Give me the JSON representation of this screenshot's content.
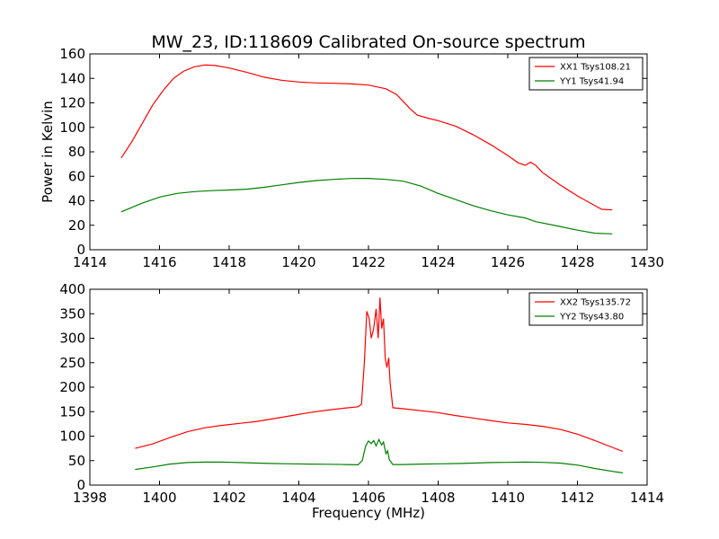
{
  "figure": {
    "title": "MW_23, ID:118609 Calibrated On-source spectrum"
  },
  "chart_data": [
    {
      "type": "line",
      "title": "MW_23, ID:118609 Calibrated On-source spectrum",
      "xlabel": "",
      "ylabel": "Power in Kelvin",
      "xlim": [
        1414,
        1430
      ],
      "ylim": [
        0,
        160
      ],
      "xticks": [
        1414,
        1416,
        1418,
        1420,
        1422,
        1424,
        1426,
        1428,
        1430
      ],
      "yticks": [
        0,
        20,
        40,
        60,
        80,
        100,
        120,
        140,
        160
      ],
      "grid": false,
      "legend_position": "top-right",
      "series": [
        {
          "name": "XX1 Tsys108.21",
          "color": "#ff0000",
          "points": [
            [
              1414.9,
              75
            ],
            [
              1415.2,
              88
            ],
            [
              1415.5,
              103
            ],
            [
              1415.8,
              118
            ],
            [
              1416.1,
              130
            ],
            [
              1416.4,
              140
            ],
            [
              1416.7,
              146
            ],
            [
              1417.0,
              149.5
            ],
            [
              1417.3,
              151
            ],
            [
              1417.6,
              150.5
            ],
            [
              1418.0,
              148.5
            ],
            [
              1418.5,
              145
            ],
            [
              1419.0,
              141
            ],
            [
              1419.5,
              138.5
            ],
            [
              1420.0,
              137
            ],
            [
              1420.5,
              136.3
            ],
            [
              1421.0,
              136
            ],
            [
              1421.5,
              135.5
            ],
            [
              1422.0,
              134.5
            ],
            [
              1422.5,
              131.5
            ],
            [
              1422.8,
              127
            ],
            [
              1423.0,
              121
            ],
            [
              1423.2,
              115
            ],
            [
              1423.4,
              110
            ],
            [
              1423.7,
              107.5
            ],
            [
              1424.0,
              105.5
            ],
            [
              1424.5,
              101
            ],
            [
              1425.0,
              94
            ],
            [
              1425.5,
              86
            ],
            [
              1426.0,
              77
            ],
            [
              1426.3,
              71
            ],
            [
              1426.5,
              69
            ],
            [
              1426.65,
              71.5
            ],
            [
              1426.8,
              69
            ],
            [
              1427.0,
              63
            ],
            [
              1427.5,
              53
            ],
            [
              1428.0,
              44
            ],
            [
              1428.5,
              36
            ],
            [
              1428.7,
              33
            ],
            [
              1429.0,
              32.5
            ]
          ]
        },
        {
          "name": "YY1 Tsys41.94",
          "color": "#008000",
          "points": [
            [
              1414.9,
              31
            ],
            [
              1415.5,
              38
            ],
            [
              1416.0,
              43
            ],
            [
              1416.5,
              46
            ],
            [
              1417.0,
              47.5
            ],
            [
              1417.5,
              48.3
            ],
            [
              1418.0,
              48.8
            ],
            [
              1418.5,
              49.5
            ],
            [
              1419.0,
              51
            ],
            [
              1419.5,
              53
            ],
            [
              1420.0,
              55
            ],
            [
              1420.5,
              56.5
            ],
            [
              1421.0,
              57.5
            ],
            [
              1421.5,
              58.2
            ],
            [
              1422.0,
              58.3
            ],
            [
              1422.5,
              57.5
            ],
            [
              1423.0,
              56
            ],
            [
              1423.5,
              52
            ],
            [
              1424.0,
              46
            ],
            [
              1424.5,
              41
            ],
            [
              1425.0,
              36
            ],
            [
              1425.5,
              32
            ],
            [
              1426.0,
              28.5
            ],
            [
              1426.5,
              26
            ],
            [
              1426.6,
              25
            ],
            [
              1426.8,
              23
            ],
            [
              1427.5,
              19
            ],
            [
              1428.0,
              16
            ],
            [
              1428.5,
              13.5
            ],
            [
              1429.0,
              13
            ]
          ]
        }
      ]
    },
    {
      "type": "line",
      "title": "",
      "xlabel": "Frequency (MHz)",
      "ylabel": "",
      "xlim": [
        1398,
        1414
      ],
      "ylim": [
        0,
        400
      ],
      "xticks": [
        1398,
        1400,
        1402,
        1404,
        1406,
        1408,
        1410,
        1412,
        1414
      ],
      "yticks": [
        0,
        50,
        100,
        150,
        200,
        250,
        300,
        350,
        400
      ],
      "grid": false,
      "legend_position": "top-right",
      "series": [
        {
          "name": "XX2 Tsys135.72",
          "color": "#ff0000",
          "points": [
            [
              1399.3,
              75
            ],
            [
              1399.8,
              84
            ],
            [
              1400.3,
              97
            ],
            [
              1400.8,
              109
            ],
            [
              1401.3,
              117
            ],
            [
              1401.8,
              122
            ],
            [
              1402.3,
              126
            ],
            [
              1402.8,
              130
            ],
            [
              1403.3,
              136
            ],
            [
              1403.8,
              142
            ],
            [
              1404.3,
              148
            ],
            [
              1404.8,
              153
            ],
            [
              1405.3,
              157
            ],
            [
              1405.7,
              160
            ],
            [
              1405.8,
              165
            ],
            [
              1405.88,
              250
            ],
            [
              1405.95,
              355
            ],
            [
              1406.02,
              340
            ],
            [
              1406.08,
              300
            ],
            [
              1406.15,
              320
            ],
            [
              1406.22,
              360
            ],
            [
              1406.28,
              300
            ],
            [
              1406.33,
              383
            ],
            [
              1406.38,
              320
            ],
            [
              1406.43,
              340
            ],
            [
              1406.48,
              260
            ],
            [
              1406.53,
              240
            ],
            [
              1406.58,
              260
            ],
            [
              1406.62,
              210
            ],
            [
              1406.7,
              158
            ],
            [
              1407.0,
              156
            ],
            [
              1407.5,
              152
            ],
            [
              1408.0,
              148
            ],
            [
              1408.5,
              142
            ],
            [
              1409.0,
              137
            ],
            [
              1409.5,
              132
            ],
            [
              1410.0,
              127
            ],
            [
              1410.5,
              124
            ],
            [
              1411.0,
              120
            ],
            [
              1411.5,
              114
            ],
            [
              1412.0,
              104
            ],
            [
              1412.5,
              91
            ],
            [
              1413.0,
              77
            ],
            [
              1413.3,
              69
            ]
          ]
        },
        {
          "name": "YY2 Tsys43.80",
          "color": "#008000",
          "points": [
            [
              1399.3,
              32
            ],
            [
              1399.8,
              37
            ],
            [
              1400.3,
              43
            ],
            [
              1400.8,
              46
            ],
            [
              1401.3,
              47
            ],
            [
              1401.8,
              47
            ],
            [
              1402.3,
              46
            ],
            [
              1402.8,
              45
            ],
            [
              1403.3,
              44
            ],
            [
              1403.8,
              43.5
            ],
            [
              1404.3,
              43
            ],
            [
              1404.8,
              42.5
            ],
            [
              1405.3,
              42
            ],
            [
              1405.7,
              41.5
            ],
            [
              1405.82,
              50
            ],
            [
              1405.92,
              80
            ],
            [
              1406.0,
              90
            ],
            [
              1406.08,
              85
            ],
            [
              1406.15,
              91
            ],
            [
              1406.22,
              80
            ],
            [
              1406.3,
              93
            ],
            [
              1406.38,
              82
            ],
            [
              1406.43,
              88
            ],
            [
              1406.5,
              64
            ],
            [
              1406.55,
              70
            ],
            [
              1406.6,
              52
            ],
            [
              1406.7,
              42
            ],
            [
              1407.0,
              42
            ],
            [
              1407.5,
              43
            ],
            [
              1408.0,
              43.5
            ],
            [
              1408.5,
              44
            ],
            [
              1409.0,
              45
            ],
            [
              1409.5,
              46
            ],
            [
              1410.0,
              46.5
            ],
            [
              1410.5,
              47
            ],
            [
              1411.0,
              46.5
            ],
            [
              1411.5,
              45
            ],
            [
              1412.0,
              41
            ],
            [
              1412.5,
              34
            ],
            [
              1413.0,
              28
            ],
            [
              1413.3,
              25
            ]
          ]
        }
      ]
    }
  ]
}
